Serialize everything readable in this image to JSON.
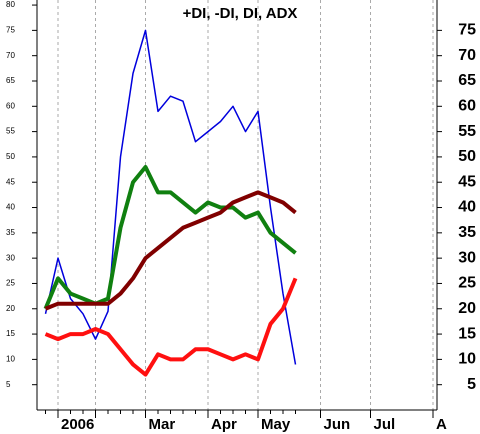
{
  "chart_data": {
    "type": "line",
    "title": "+DI, -DI, DI, ADX",
    "x": [
      0,
      1,
      2,
      3,
      4,
      5,
      6,
      7,
      8,
      9,
      10,
      11,
      12,
      13,
      14,
      15,
      16,
      17,
      18,
      19,
      20
    ],
    "xlim": [
      -0.68,
      31.32
    ],
    "xticks": [
      {
        "value": 1,
        "label": "2006"
      },
      {
        "value": 4,
        "label": null
      },
      {
        "value": 8,
        "label": "Mar"
      },
      {
        "value": 13,
        "label": "Apr"
      },
      {
        "value": 17,
        "label": "May"
      },
      {
        "value": 22,
        "label": "Jun"
      },
      {
        "value": 26,
        "label": "Jul"
      },
      {
        "value": 31,
        "label": "A"
      }
    ],
    "ylim": [
      0,
      81
    ],
    "yticks": [
      5,
      10,
      15,
      20,
      25,
      30,
      35,
      40,
      45,
      50,
      55,
      60,
      65,
      70,
      75,
      80
    ],
    "y2lim": [
      0,
      81
    ],
    "y2ticks": [
      5,
      10,
      15,
      20,
      25,
      30,
      35,
      40,
      45,
      50,
      55,
      60,
      65,
      70,
      75
    ],
    "grid": true,
    "series": [
      {
        "color": "#0000dd",
        "width": 1.5,
        "values": [
          19,
          30,
          22,
          19,
          14,
          19.5,
          50,
          66.5,
          75,
          59,
          62,
          61,
          53,
          55,
          57,
          60,
          55,
          59,
          40,
          23,
          9
        ]
      },
      {
        "color": "#108010",
        "width": 4,
        "values": [
          20,
          26,
          23,
          22,
          21,
          22,
          36,
          45,
          48,
          43,
          43,
          41,
          39,
          41,
          40,
          40,
          38,
          39,
          35,
          33,
          31
        ]
      },
      {
        "color": "#800000",
        "width": 4,
        "values": [
          20,
          21,
          21,
          21,
          21,
          21,
          23,
          26,
          30,
          32,
          34,
          36,
          37,
          38,
          39,
          41,
          42,
          43,
          42,
          41,
          39
        ]
      },
      {
        "color": "#ff1010",
        "width": 4,
        "values": [
          15,
          14,
          15,
          15,
          16,
          15,
          12,
          9,
          7,
          11,
          10,
          10,
          12,
          12,
          11,
          10,
          11,
          10,
          17,
          20,
          26
        ]
      }
    ]
  }
}
